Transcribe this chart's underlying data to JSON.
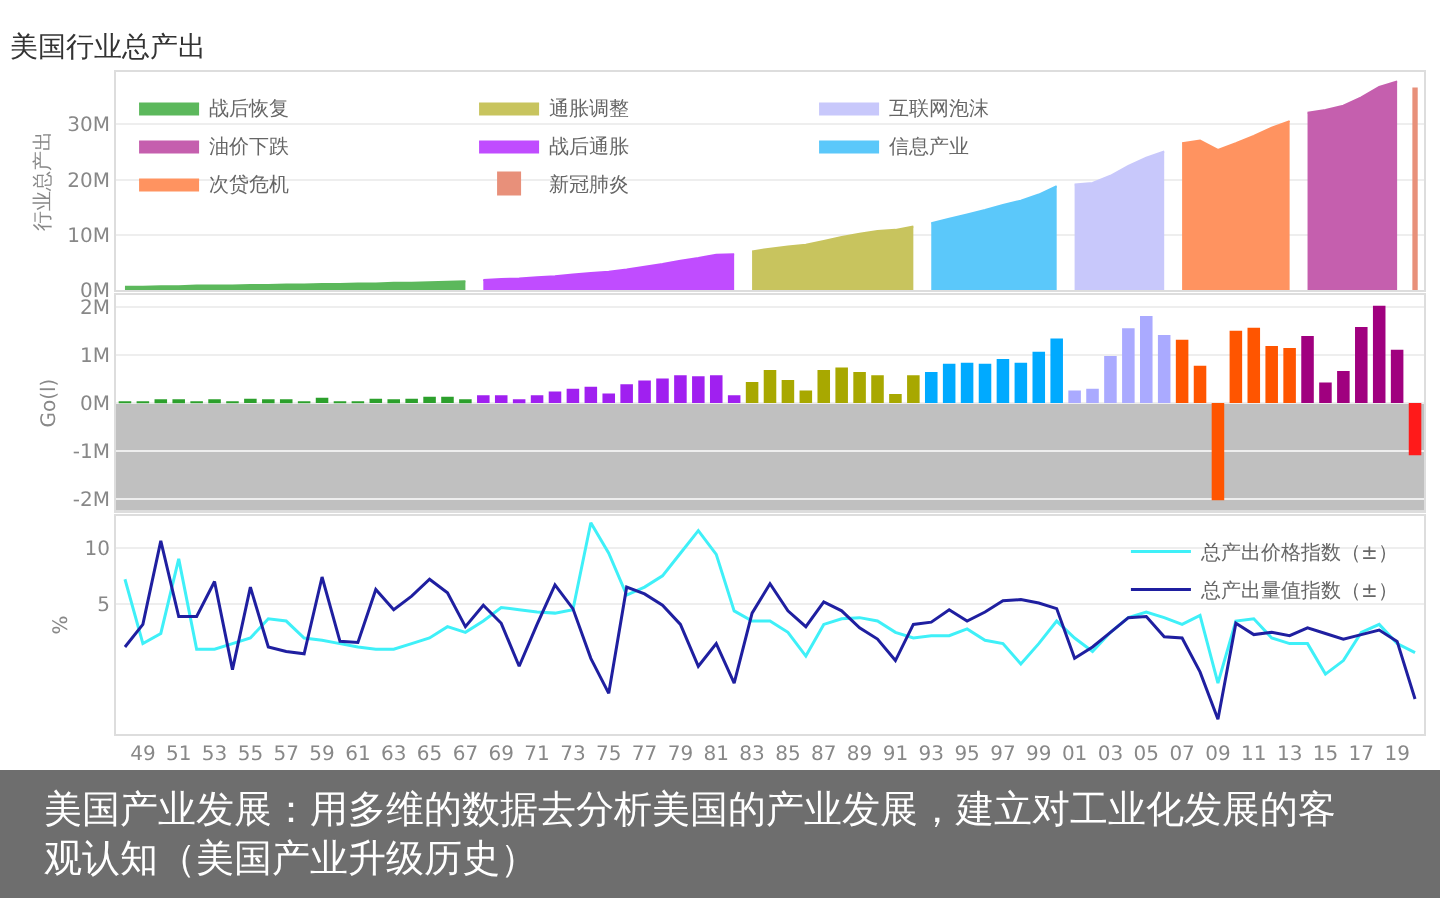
{
  "chart_data": [
    {
      "type": "area",
      "title": "美国行业总产出",
      "ylabel": "行业总产出",
      "xlim": [
        1947.5,
        2020.5
      ],
      "ylim": [
        0,
        39.5
      ],
      "yticks": [
        {
          "value": 0,
          "label": "0M"
        },
        {
          "value": 10,
          "label": "10M"
        },
        {
          "value": 20,
          "label": "20M"
        },
        {
          "value": 30,
          "label": "30M"
        }
      ],
      "tick_labels": "y",
      "grid": "y",
      "legend": "top left",
      "series": [
        {
          "name": "战后恢复",
          "color": "#5cb85c",
          "x": [
            1948,
            1949,
            1950,
            1951,
            1952,
            1953,
            1954,
            1955,
            1956,
            1957,
            1958,
            1959,
            1960,
            1961,
            1962,
            1963,
            1964,
            1965,
            1966,
            1967
          ],
          "values": [
            0.6,
            0.6,
            0.7,
            0.7,
            0.8,
            0.8,
            0.8,
            0.9,
            0.9,
            1.0,
            1.0,
            1.1,
            1.1,
            1.2,
            1.2,
            1.3,
            1.3,
            1.4,
            1.5,
            1.6
          ]
        },
        {
          "name": "战后通胀",
          "color": "#c04cff",
          "x": [
            1968,
            1969,
            1970,
            1971,
            1972,
            1973,
            1974,
            1975,
            1976,
            1977,
            1978,
            1979,
            1980,
            1981,
            1982
          ],
          "values": [
            1.8,
            2.0,
            2.1,
            2.3,
            2.5,
            2.8,
            3.1,
            3.3,
            3.7,
            4.2,
            4.7,
            5.3,
            5.8,
            6.4,
            6.5
          ]
        },
        {
          "name": "通胀调整",
          "color": "#c8c45e",
          "x": [
            1983,
            1984,
            1985,
            1986,
            1987,
            1988,
            1989,
            1990,
            1991,
            1992
          ],
          "values": [
            7.0,
            7.5,
            7.9,
            8.2,
            8.9,
            9.6,
            10.2,
            10.7,
            10.9,
            11.5
          ]
        },
        {
          "name": "信息产业",
          "color": "#5bc8fa",
          "x": [
            1993,
            1994,
            1995,
            1996,
            1997,
            1998,
            1999,
            2000
          ],
          "values": [
            12.1,
            12.9,
            13.7,
            14.5,
            15.4,
            16.2,
            17.3,
            18.8
          ]
        },
        {
          "name": "互联网泡沫",
          "color": "#c8c8fb",
          "x": [
            2001,
            2002,
            2003,
            2004,
            2005,
            2006
          ],
          "values": [
            19.1,
            19.4,
            20.7,
            22.5,
            24.0,
            25.1
          ]
        },
        {
          "name": "次贷危机",
          "color": "#ff9360",
          "x": [
            2007,
            2008,
            2009,
            2010,
            2011,
            2012,
            2013
          ],
          "values": [
            26.6,
            27.1,
            25.4,
            26.6,
            27.9,
            29.4,
            30.6
          ]
        },
        {
          "name": "油价下跌",
          "color": "#c55fae",
          "x": [
            2014,
            2015,
            2016,
            2017,
            2018,
            2019
          ],
          "values": [
            32.1,
            32.6,
            33.4,
            34.9,
            36.8,
            37.8
          ]
        },
        {
          "name": "新冠肺炎",
          "type": "bar",
          "color": "#e8907a",
          "x": [
            2020
          ],
          "values": [
            36.7
          ]
        }
      ]
    },
    {
      "type": "bar",
      "ylabel": "Go(l)",
      "xlim": [
        1947.5,
        2020.5
      ],
      "ylim": [
        -2.25,
        2.25
      ],
      "yticks": [
        {
          "value": -2,
          "label": "-2M"
        },
        {
          "value": -1,
          "label": "-1M"
        },
        {
          "value": 0,
          "label": "0M"
        },
        {
          "value": 1,
          "label": "1M"
        },
        {
          "value": 2,
          "label": "2M"
        }
      ],
      "tick_labels": "y",
      "grid": "y",
      "bands": [
        {
          "axis": "y",
          "from": -2.25,
          "to": 0,
          "color": "#c0c0c0"
        }
      ],
      "series": [
        {
          "color": "#2ca02c",
          "x": [
            1948,
            1949,
            1950,
            1951,
            1952,
            1953,
            1954,
            1955,
            1956,
            1957,
            1958,
            1959,
            1960,
            1961,
            1962,
            1963,
            1964,
            1965,
            1966,
            1967
          ],
          "values": [
            0.02,
            0.01,
            0.08,
            0.08,
            0.03,
            0.06,
            0.01,
            0.09,
            0.07,
            0.07,
            0.03,
            0.11,
            0.02,
            0.03,
            0.09,
            0.08,
            0.09,
            0.13,
            0.13,
            0.08
          ]
        },
        {
          "color": "#a020f0",
          "x": [
            1968,
            1969,
            1970,
            1971,
            1972,
            1973,
            1974,
            1975,
            1976,
            1977,
            1978,
            1979,
            1980,
            1981,
            1982
          ],
          "values": [
            0.16,
            0.16,
            0.07,
            0.16,
            0.24,
            0.3,
            0.34,
            0.2,
            0.39,
            0.47,
            0.51,
            0.58,
            0.56,
            0.58,
            0.16
          ]
        },
        {
          "color": "#a8a800",
          "x": [
            1983,
            1984,
            1985,
            1986,
            1987,
            1988,
            1989,
            1990,
            1991,
            1992
          ],
          "values": [
            0.44,
            0.69,
            0.48,
            0.26,
            0.69,
            0.74,
            0.65,
            0.58,
            0.19,
            0.58
          ]
        },
        {
          "color": "#00aaff",
          "x": [
            1993,
            1994,
            1995,
            1996,
            1997,
            1998,
            1999,
            2000
          ],
          "values": [
            0.65,
            0.82,
            0.84,
            0.82,
            0.92,
            0.84,
            1.07,
            1.35
          ]
        },
        {
          "color": "#aaaaff",
          "x": [
            2001,
            2002,
            2003,
            2004,
            2005,
            2006
          ],
          "values": [
            0.26,
            0.3,
            0.98,
            1.56,
            1.82,
            1.42
          ]
        },
        {
          "color": "#ff5500",
          "x": [
            2007,
            2008,
            2009,
            2010,
            2011,
            2012,
            2013
          ],
          "values": [
            1.32,
            0.78,
            -2.03,
            1.51,
            1.57,
            1.19,
            1.15
          ]
        },
        {
          "color": "#a0007f",
          "x": [
            2014,
            2015,
            2016,
            2017,
            2018,
            2019
          ],
          "values": [
            1.4,
            0.43,
            0.67,
            1.59,
            2.03,
            1.11
          ]
        },
        {
          "color": "#ff1a1a",
          "x": [
            2020
          ],
          "values": [
            -1.09
          ]
        }
      ]
    },
    {
      "type": "line",
      "ylabel": "%",
      "xlim": [
        1947.5,
        2020.5
      ],
      "ylim": [
        -6.5,
        12.8
      ],
      "yticks": [
        5,
        10
      ],
      "grid": "y",
      "legend": "top right",
      "xticks": [
        {
          "value": 1949,
          "label": "49"
        },
        {
          "value": 1951,
          "label": "51"
        },
        {
          "value": 1953,
          "label": "53"
        },
        {
          "value": 1955,
          "label": "55"
        },
        {
          "value": 1957,
          "label": "57"
        },
        {
          "value": 1959,
          "label": "59"
        },
        {
          "value": 1961,
          "label": "61"
        },
        {
          "value": 1963,
          "label": "63"
        },
        {
          "value": 1965,
          "label": "65"
        },
        {
          "value": 1967,
          "label": "67"
        },
        {
          "value": 1969,
          "label": "69"
        },
        {
          "value": 1971,
          "label": "71"
        },
        {
          "value": 1973,
          "label": "73"
        },
        {
          "value": 1975,
          "label": "75"
        },
        {
          "value": 1977,
          "label": "77"
        },
        {
          "value": 1979,
          "label": "79"
        },
        {
          "value": 1981,
          "label": "81"
        },
        {
          "value": 1983,
          "label": "83"
        },
        {
          "value": 1985,
          "label": "85"
        },
        {
          "value": 1987,
          "label": "87"
        },
        {
          "value": 1989,
          "label": "89"
        },
        {
          "value": 1991,
          "label": "91"
        },
        {
          "value": 1993,
          "label": "93"
        },
        {
          "value": 1995,
          "label": "95"
        },
        {
          "value": 1997,
          "label": "97"
        },
        {
          "value": 1999,
          "label": "99"
        },
        {
          "value": 2001,
          "label": "01"
        },
        {
          "value": 2003,
          "label": "03"
        },
        {
          "value": 2005,
          "label": "05"
        },
        {
          "value": 2007,
          "label": "07"
        },
        {
          "value": 2009,
          "label": "09"
        },
        {
          "value": 2011,
          "label": "11"
        },
        {
          "value": 2013,
          "label": "13"
        },
        {
          "value": 2015,
          "label": "15"
        },
        {
          "value": 2017,
          "label": "17"
        },
        {
          "value": 2019,
          "label": "19"
        }
      ],
      "x": [
        1948,
        1949,
        1950,
        1951,
        1952,
        1953,
        1954,
        1955,
        1956,
        1957,
        1958,
        1959,
        1960,
        1961,
        1962,
        1963,
        1964,
        1965,
        1966,
        1967,
        1968,
        1969,
        1970,
        1971,
        1972,
        1973,
        1974,
        1975,
        1976,
        1977,
        1978,
        1979,
        1980,
        1981,
        1982,
        1983,
        1984,
        1985,
        1986,
        1987,
        1988,
        1989,
        1990,
        1991,
        1992,
        1993,
        1994,
        1995,
        1996,
        1997,
        1998,
        1999,
        2000,
        2001,
        2002,
        2003,
        2004,
        2005,
        2006,
        2007,
        2008,
        2009,
        2010,
        2011,
        2012,
        2013,
        2014,
        2015,
        2016,
        2017,
        2018,
        2019,
        2020
      ],
      "series": [
        {
          "name": "总产出价格指数（±）",
          "color": "#3ff0f8",
          "values": [
            7.2,
            1.5,
            2.4,
            9.0,
            1.0,
            1.0,
            1.5,
            2.0,
            3.7,
            3.5,
            2.0,
            1.8,
            1.5,
            1.2,
            1.0,
            1.0,
            1.5,
            2.0,
            3.0,
            2.5,
            3.5,
            4.7,
            4.5,
            4.3,
            4.2,
            4.5,
            12.2,
            9.5,
            5.8,
            6.5,
            7.5,
            9.5,
            11.5,
            9.4,
            4.4,
            3.5,
            3.5,
            2.5,
            0.4,
            3.2,
            3.7,
            3.8,
            3.5,
            2.5,
            2.0,
            2.2,
            2.2,
            2.8,
            1.8,
            1.5,
            -0.3,
            1.5,
            3.5,
            2.0,
            0.8,
            2.5,
            3.8,
            4.3,
            3.8,
            3.2,
            4.0,
            -2.0,
            3.5,
            3.7,
            2.0,
            1.5,
            1.5,
            -1.2,
            0.0,
            2.5,
            3.2,
            1.5,
            0.7
          ]
        },
        {
          "name": "总产出量值指数（±）",
          "color": "#1f1fa0",
          "values": [
            1.2,
            3.2,
            10.6,
            3.9,
            3.9,
            7.0,
            -0.8,
            6.5,
            1.2,
            0.8,
            0.6,
            7.4,
            1.7,
            1.6,
            6.3,
            4.5,
            5.7,
            7.2,
            6.0,
            3.0,
            4.9,
            3.3,
            -0.5,
            3.2,
            6.7,
            4.6,
            0.2,
            -2.9,
            6.5,
            5.9,
            4.9,
            3.2,
            -0.5,
            1.5,
            -2.0,
            4.2,
            6.8,
            4.4,
            3.0,
            5.2,
            4.4,
            2.9,
            1.9,
            0.0,
            3.2,
            3.4,
            4.5,
            3.5,
            4.3,
            5.3,
            5.4,
            5.1,
            4.6,
            0.2,
            1.2,
            2.5,
            3.8,
            3.9,
            2.1,
            2.0,
            -1.0,
            -5.2,
            3.3,
            2.3,
            2.5,
            2.2,
            2.9,
            2.4,
            1.9,
            2.3,
            2.7,
            1.7,
            -3.4
          ]
        }
      ],
      "annotations": [
        "美国产业发展：用多维的数据去分析美国的产业发展，建立对工业化发展的客观认知（美国产业升级历史）"
      ]
    }
  ]
}
